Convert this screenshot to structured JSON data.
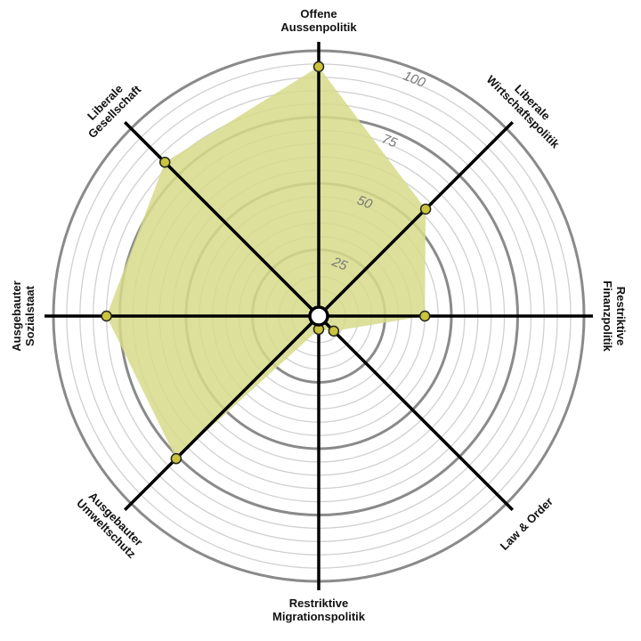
{
  "chart_data": {
    "type": "radar",
    "categories": [
      [
        "Offene",
        "Aussenpolitik"
      ],
      [
        "Liberale",
        "Wirtschaftspolitik"
      ],
      [
        "Restriktive",
        "Finanzpolitik"
      ],
      [
        "Law & Order"
      ],
      [
        "Restriktive",
        "Migrationspolitik"
      ],
      [
        "Ausgebauter",
        "Umweltschutz"
      ],
      [
        "Ausgebauter",
        "Sozialstaat"
      ],
      [
        "Liberale",
        "Gesellschaft"
      ]
    ],
    "values": [
      94,
      57,
      40,
      8,
      5,
      76,
      80,
      82
    ],
    "color": "#d6da8a",
    "marker_color": "#c9c43c",
    "ylim": [
      0,
      100
    ],
    "yticks": [
      25,
      50,
      75,
      100
    ],
    "minor_yticks": [
      5,
      10,
      15,
      20,
      30,
      35,
      40,
      45,
      55,
      60,
      65,
      70,
      80,
      85,
      90,
      95
    ],
    "grid": true
  }
}
